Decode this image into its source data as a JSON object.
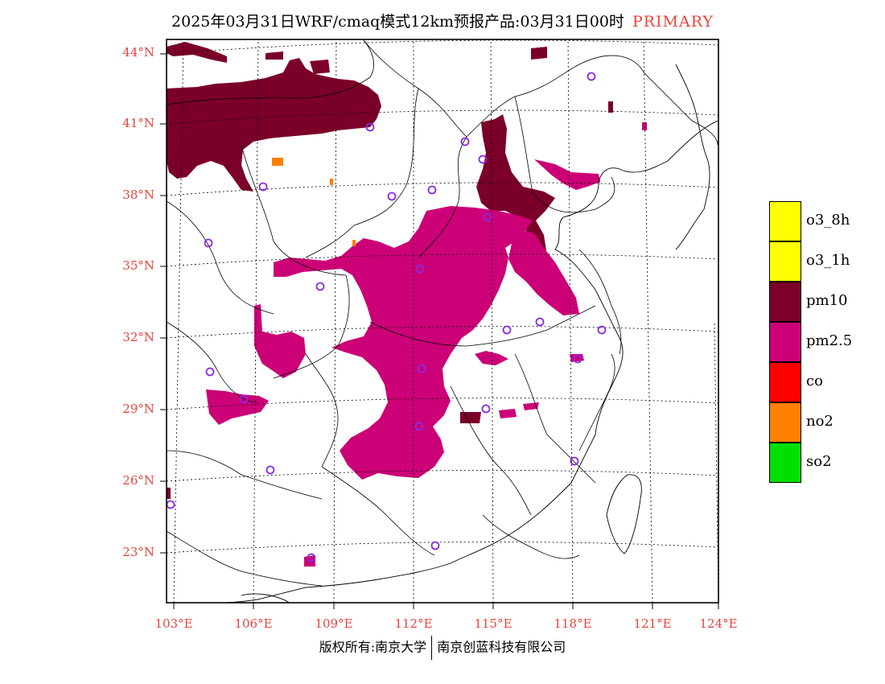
{
  "title": {
    "main": "2025年03月31日WRF/cmaq模式12km预报产品:03月31日00时",
    "tag": "PRIMARY"
  },
  "axes": {
    "lat_labels": [
      "44°N",
      "41°N",
      "38°N",
      "35°N",
      "32°N",
      "29°N",
      "26°N",
      "23°N"
    ],
    "lon_labels": [
      "103°E",
      "106°E",
      "109°E",
      "112°E",
      "115°E",
      "118°E",
      "121°E",
      "124°E"
    ]
  },
  "legend": [
    {
      "label": "o3_8h",
      "color": "#ffff00"
    },
    {
      "label": "o3_1h",
      "color": "#ffff00"
    },
    {
      "label": "pm10",
      "color": "#7b0029"
    },
    {
      "label": "pm2.5",
      "color": "#cc0077"
    },
    {
      "label": "co",
      "color": "#ff0000"
    },
    {
      "label": "no2",
      "color": "#ff7f00"
    },
    {
      "label": "so2",
      "color": "#00e000"
    }
  ],
  "footer": {
    "left": "版权所有:南京大学",
    "right": "南京创蓝科技有限公司"
  },
  "colors": {
    "axis_label": "#e8453c",
    "station_marker": "#8a2be2"
  },
  "map_icons": [
    "station-circle-icon"
  ]
}
